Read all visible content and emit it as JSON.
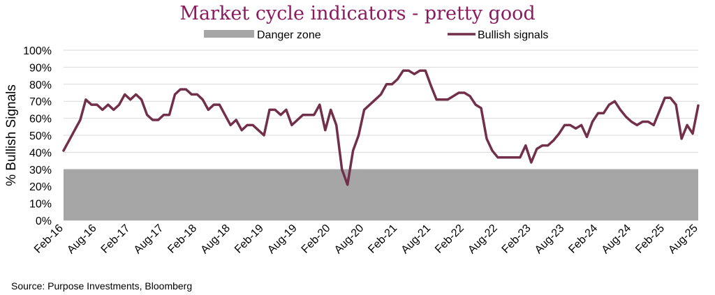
{
  "chart_data": {
    "type": "line",
    "title": "Market cycle indicators - pretty good",
    "ylabel": "% Bullish Signals",
    "xlabel": "",
    "ylim": [
      0,
      100
    ],
    "yticks": [
      "0%",
      "10%",
      "20%",
      "30%",
      "40%",
      "50%",
      "60%",
      "70%",
      "80%",
      "90%",
      "100%"
    ],
    "xticks": [
      "Feb-16",
      "Aug-16",
      "Feb-17",
      "Aug-17",
      "Feb-18",
      "Aug-18",
      "Feb-19",
      "Aug-19",
      "Feb-20",
      "Aug-20",
      "Feb-21",
      "Aug-21",
      "Feb-22",
      "Aug-22",
      "Feb-23",
      "Aug-23",
      "Feb-24",
      "Aug-24",
      "Feb-25",
      "Aug-25"
    ],
    "x_range_months": [
      0,
      114
    ],
    "grid": true,
    "legend": [
      {
        "name": "Danger zone",
        "type": "area"
      },
      {
        "name": "Bullish signals",
        "type": "line"
      }
    ],
    "danger_zone": {
      "from": 0,
      "to": 30
    },
    "series": [
      {
        "name": "Bullish signals",
        "x": [
          0,
          1,
          2,
          3,
          4,
          5,
          6,
          7,
          8,
          9,
          10,
          11,
          12,
          13,
          14,
          15,
          16,
          17,
          18,
          19,
          20,
          21,
          22,
          23,
          24,
          25,
          26,
          27,
          28,
          29,
          30,
          31,
          32,
          33,
          34,
          35,
          36,
          37,
          38,
          39,
          40,
          41,
          42,
          43,
          44,
          45,
          46,
          47,
          48,
          49,
          50,
          51,
          52,
          53,
          54,
          55,
          56,
          57,
          58,
          59,
          60,
          61,
          62,
          63,
          64,
          65,
          66,
          67,
          68,
          69,
          70,
          71,
          72,
          73,
          74,
          75,
          76,
          77,
          78,
          79,
          80,
          81,
          82,
          83,
          84,
          85,
          86,
          87,
          88,
          89,
          90,
          91,
          92,
          93,
          94,
          95,
          96,
          97,
          98,
          99,
          100,
          101,
          102,
          103,
          104,
          105,
          106,
          107,
          108,
          109,
          110,
          111,
          112,
          113,
          114
        ],
        "values": [
          41,
          47,
          53,
          59,
          71,
          68,
          68,
          65,
          68,
          65,
          68,
          74,
          71,
          74,
          71,
          62,
          59,
          59,
          62,
          62,
          74,
          77,
          77,
          74,
          74,
          71,
          65,
          68,
          68,
          62,
          56,
          59,
          53,
          56,
          56,
          53,
          50,
          65,
          65,
          62,
          65,
          56,
          59,
          62,
          62,
          62,
          68,
          53,
          65,
          56,
          30,
          21,
          41,
          50,
          65,
          68,
          71,
          74,
          80,
          80,
          83,
          88,
          88,
          86,
          88,
          88,
          79,
          71,
          71,
          71,
          73,
          75,
          75,
          73,
          68,
          66,
          48,
          41,
          37,
          37,
          37,
          37,
          37,
          44,
          34,
          42,
          44,
          44,
          47,
          51,
          56,
          56,
          54,
          56,
          49,
          58,
          63,
          63,
          68,
          70,
          65,
          61,
          58,
          56,
          58,
          58,
          56,
          64,
          72,
          72,
          68,
          48,
          56,
          51,
          67.5
        ]
      }
    ],
    "colors": {
      "line": "#722f4a",
      "danger": "#a6a6a6",
      "title": "#8b1a5e",
      "grid": "#d9d9d9"
    },
    "source": "Source: Purpose Investments,  Bloomberg"
  }
}
